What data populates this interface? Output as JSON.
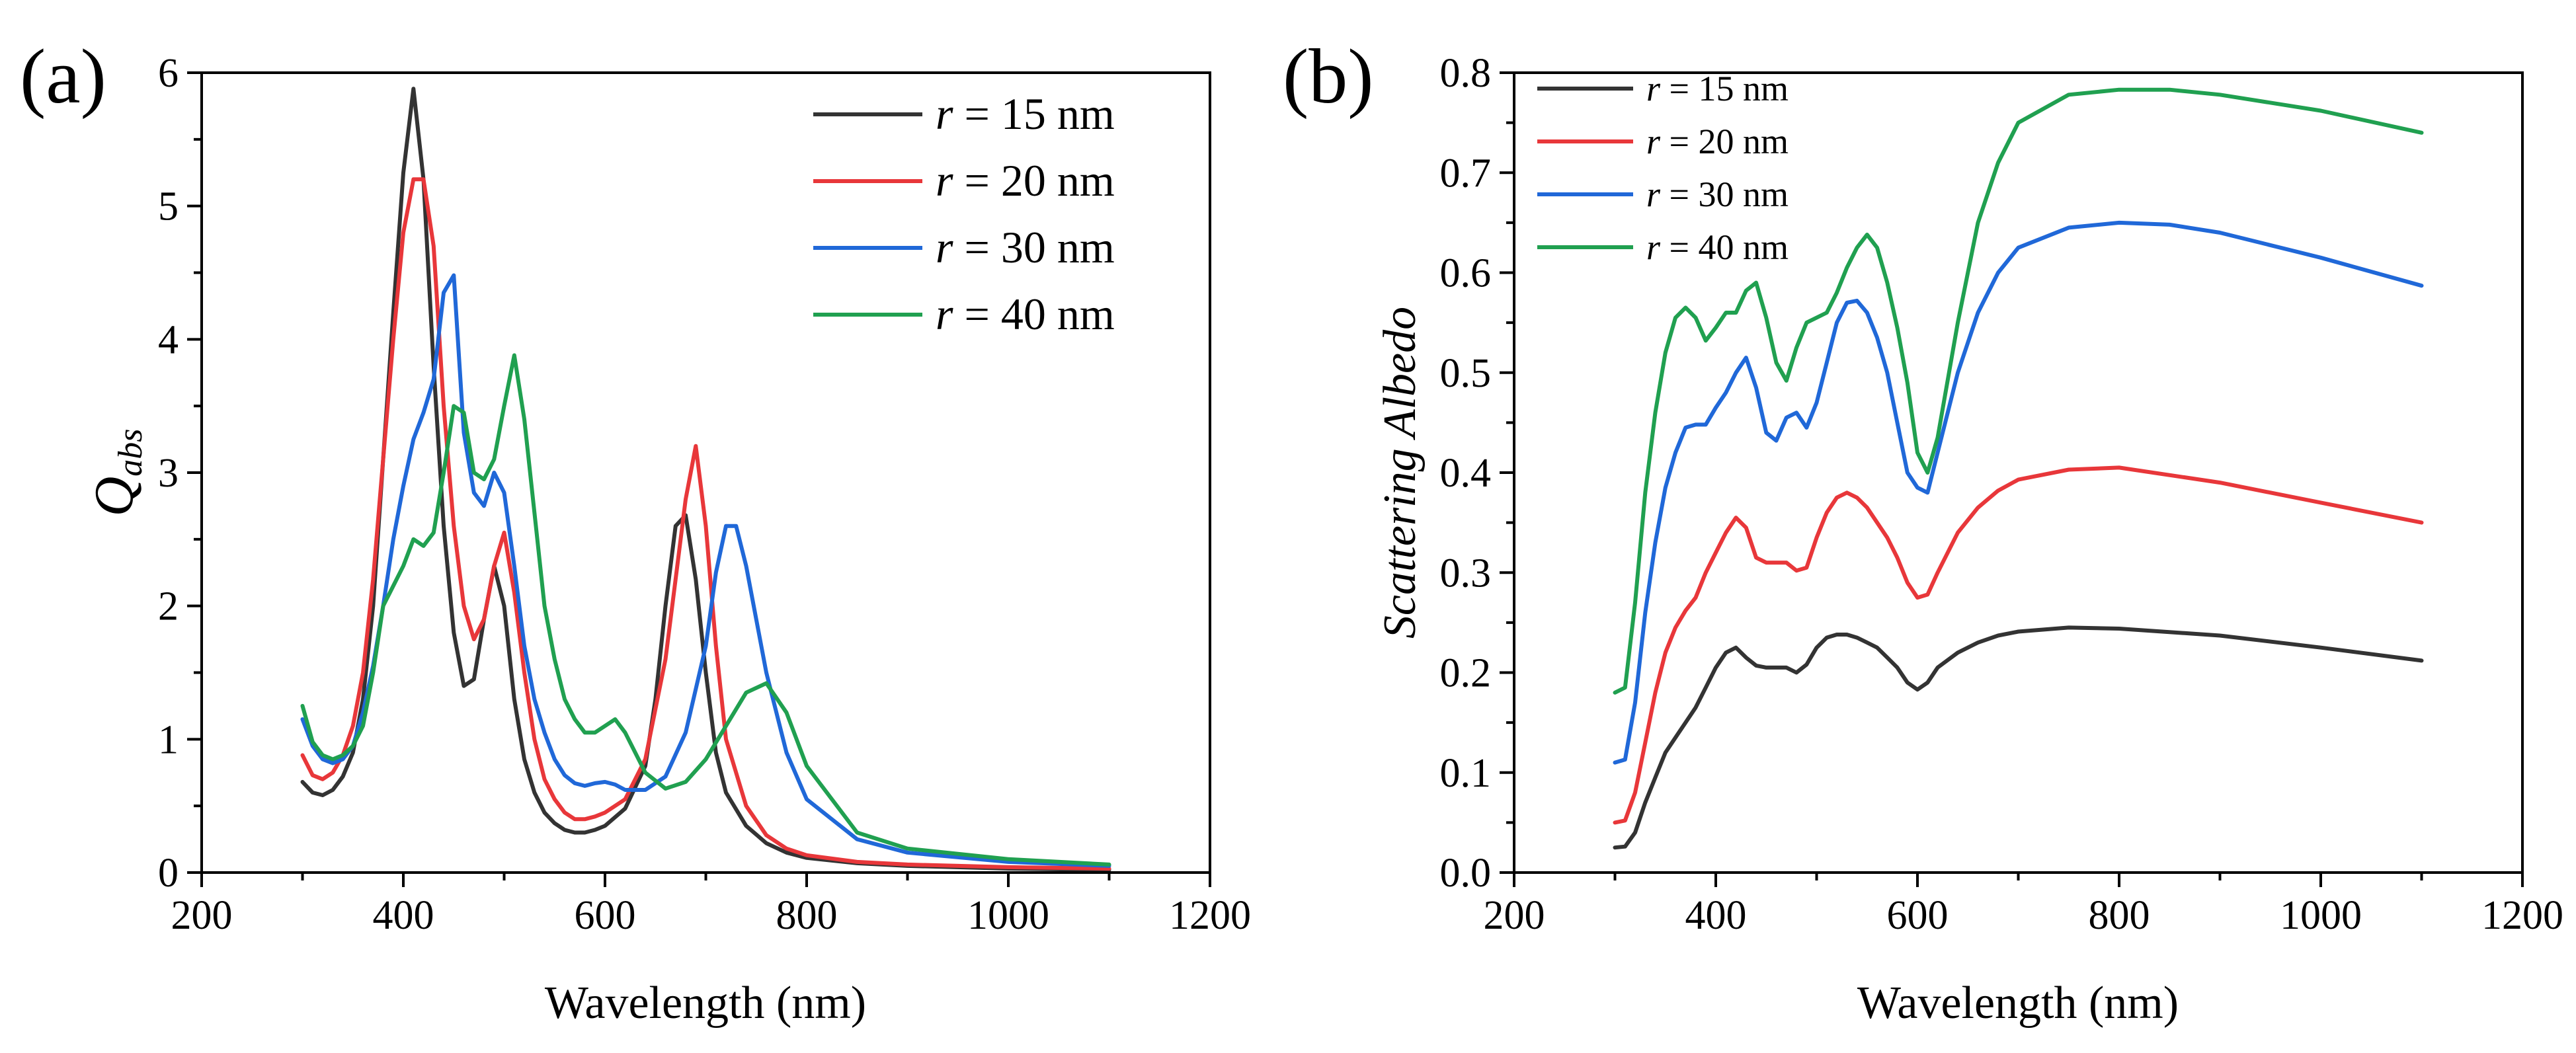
{
  "panels": {
    "a": {
      "label": "(a)"
    },
    "b": {
      "label": "(b)"
    }
  },
  "chart_data": [
    {
      "type": "line",
      "panel_label": "(a)",
      "title": "",
      "xlabel": "Wavelength (nm)",
      "ylabel": "Q",
      "ylabel_sub": "abs",
      "xlim": [
        200,
        1200
      ],
      "ylim": [
        0,
        6
      ],
      "xticks": [
        "200",
        "400",
        "600",
        "800",
        "1000",
        "1200"
      ],
      "yticks": [
        "0",
        "1",
        "2",
        "3",
        "4",
        "5",
        "6"
      ],
      "legend": {
        "location": "top-right"
      },
      "series": [
        {
          "name_var": "r",
          "name_rest": " = 15 nm",
          "color": "#333333",
          "x": [
            300,
            310,
            320,
            330,
            340,
            350,
            360,
            370,
            380,
            390,
            400,
            410,
            420,
            430,
            440,
            450,
            460,
            470,
            480,
            490,
            500,
            510,
            520,
            530,
            540,
            550,
            560,
            570,
            580,
            590,
            600,
            620,
            640,
            650,
            660,
            670,
            680,
            690,
            700,
            710,
            720,
            740,
            760,
            780,
            800,
            850,
            900,
            1000,
            1100
          ],
          "y": [
            0.68,
            0.6,
            0.58,
            0.62,
            0.72,
            0.9,
            1.3,
            2.0,
            3.1,
            4.2,
            5.25,
            5.88,
            5.2,
            3.8,
            2.6,
            1.8,
            1.4,
            1.45,
            1.9,
            2.3,
            2.0,
            1.3,
            0.85,
            0.6,
            0.45,
            0.37,
            0.32,
            0.3,
            0.3,
            0.32,
            0.35,
            0.48,
            0.8,
            1.3,
            2.0,
            2.6,
            2.68,
            2.2,
            1.5,
            0.9,
            0.6,
            0.35,
            0.22,
            0.15,
            0.11,
            0.07,
            0.05,
            0.03,
            0.02
          ]
        },
        {
          "name_var": "r",
          "name_rest": " = 20 nm",
          "color": "#e8373a",
          "x": [
            300,
            310,
            320,
            330,
            340,
            350,
            360,
            370,
            380,
            390,
            400,
            410,
            420,
            430,
            440,
            450,
            460,
            470,
            480,
            490,
            500,
            510,
            520,
            530,
            540,
            550,
            560,
            570,
            580,
            590,
            600,
            620,
            640,
            660,
            670,
            680,
            690,
            700,
            710,
            720,
            740,
            760,
            780,
            800,
            850,
            900,
            1000,
            1100
          ],
          "y": [
            0.88,
            0.73,
            0.7,
            0.75,
            0.88,
            1.1,
            1.5,
            2.2,
            3.1,
            4.0,
            4.8,
            5.2,
            5.2,
            4.7,
            3.5,
            2.6,
            2.0,
            1.75,
            1.9,
            2.3,
            2.55,
            2.1,
            1.5,
            1.0,
            0.7,
            0.55,
            0.45,
            0.4,
            0.4,
            0.42,
            0.45,
            0.55,
            0.85,
            1.6,
            2.2,
            2.8,
            3.2,
            2.6,
            1.7,
            1.0,
            0.5,
            0.28,
            0.18,
            0.13,
            0.08,
            0.06,
            0.04,
            0.03
          ]
        },
        {
          "name_var": "r",
          "name_rest": " = 30 nm",
          "color": "#2068d8",
          "x": [
            300,
            310,
            320,
            330,
            340,
            350,
            360,
            370,
            380,
            390,
            400,
            410,
            420,
            430,
            440,
            450,
            460,
            470,
            480,
            490,
            500,
            510,
            520,
            530,
            540,
            550,
            560,
            570,
            580,
            590,
            600,
            610,
            620,
            640,
            660,
            680,
            700,
            710,
            720,
            730,
            740,
            760,
            780,
            800,
            850,
            900,
            1000,
            1100
          ],
          "y": [
            1.15,
            0.95,
            0.85,
            0.82,
            0.85,
            0.95,
            1.2,
            1.55,
            2.0,
            2.5,
            2.9,
            3.25,
            3.45,
            3.7,
            4.35,
            4.48,
            3.3,
            2.85,
            2.75,
            3.0,
            2.85,
            2.3,
            1.7,
            1.3,
            1.05,
            0.85,
            0.73,
            0.67,
            0.65,
            0.67,
            0.68,
            0.66,
            0.62,
            0.62,
            0.72,
            1.05,
            1.7,
            2.25,
            2.6,
            2.6,
            2.3,
            1.5,
            0.9,
            0.55,
            0.25,
            0.15,
            0.08,
            0.05
          ]
        },
        {
          "name_var": "r",
          "name_rest": " = 40 nm",
          "color": "#20a050",
          "x": [
            300,
            310,
            320,
            330,
            340,
            350,
            360,
            370,
            380,
            390,
            400,
            410,
            420,
            430,
            440,
            450,
            460,
            470,
            480,
            490,
            500,
            510,
            520,
            530,
            540,
            550,
            560,
            570,
            580,
            590,
            600,
            610,
            620,
            640,
            660,
            680,
            700,
            720,
            740,
            760,
            780,
            800,
            850,
            900,
            1000,
            1100
          ],
          "y": [
            1.25,
            0.98,
            0.88,
            0.85,
            0.88,
            0.95,
            1.1,
            1.5,
            2.0,
            2.15,
            2.3,
            2.5,
            2.45,
            2.55,
            3.0,
            3.5,
            3.45,
            3.0,
            2.95,
            3.1,
            3.5,
            3.88,
            3.4,
            2.7,
            2.0,
            1.6,
            1.3,
            1.15,
            1.05,
            1.05,
            1.1,
            1.15,
            1.05,
            0.75,
            0.63,
            0.68,
            0.85,
            1.1,
            1.35,
            1.42,
            1.2,
            0.8,
            0.3,
            0.18,
            0.1,
            0.06
          ]
        }
      ]
    },
    {
      "type": "line",
      "panel_label": "(b)",
      "title": "",
      "xlabel": "Wavelength (nm)",
      "ylabel": "Scattering Albedo",
      "xlim": [
        200,
        1200
      ],
      "ylim": [
        0,
        0.8
      ],
      "xticks": [
        "200",
        "400",
        "600",
        "800",
        "1000",
        "1200"
      ],
      "yticks": [
        "0.0",
        "0.1",
        "0.2",
        "0.3",
        "0.4",
        "0.5",
        "0.6",
        "0.7",
        "0.8"
      ],
      "legend": {
        "location": "top-left"
      },
      "series": [
        {
          "name_var": "r",
          "name_rest": " = 15 nm",
          "color": "#333333",
          "x": [
            300,
            310,
            320,
            330,
            340,
            350,
            360,
            370,
            380,
            390,
            400,
            410,
            420,
            430,
            440,
            450,
            460,
            470,
            480,
            490,
            500,
            510,
            520,
            530,
            540,
            550,
            560,
            570,
            580,
            590,
            600,
            610,
            620,
            640,
            660,
            680,
            700,
            750,
            800,
            900,
            1000,
            1100
          ],
          "y": [
            0.025,
            0.026,
            0.04,
            0.07,
            0.095,
            0.12,
            0.135,
            0.15,
            0.165,
            0.185,
            0.205,
            0.22,
            0.225,
            0.215,
            0.207,
            0.205,
            0.205,
            0.205,
            0.2,
            0.208,
            0.225,
            0.235,
            0.238,
            0.238,
            0.235,
            0.23,
            0.225,
            0.215,
            0.205,
            0.19,
            0.183,
            0.19,
            0.205,
            0.22,
            0.23,
            0.237,
            0.241,
            0.245,
            0.244,
            0.237,
            0.225,
            0.212
          ]
        },
        {
          "name_var": "r",
          "name_rest": " = 20 nm",
          "color": "#e8373a",
          "x": [
            300,
            310,
            320,
            330,
            340,
            350,
            360,
            370,
            380,
            390,
            400,
            410,
            420,
            430,
            440,
            450,
            460,
            470,
            480,
            490,
            500,
            510,
            520,
            530,
            540,
            550,
            560,
            570,
            580,
            590,
            600,
            610,
            620,
            640,
            660,
            680,
            700,
            750,
            800,
            900,
            1000,
            1100
          ],
          "y": [
            0.05,
            0.052,
            0.08,
            0.13,
            0.18,
            0.22,
            0.245,
            0.262,
            0.275,
            0.3,
            0.32,
            0.34,
            0.355,
            0.345,
            0.315,
            0.31,
            0.31,
            0.31,
            0.302,
            0.305,
            0.335,
            0.36,
            0.375,
            0.38,
            0.375,
            0.365,
            0.35,
            0.335,
            0.315,
            0.29,
            0.275,
            0.278,
            0.3,
            0.34,
            0.365,
            0.382,
            0.393,
            0.403,
            0.405,
            0.39,
            0.37,
            0.35
          ]
        },
        {
          "name_var": "r",
          "name_rest": " = 30 nm",
          "color": "#2068d8",
          "x": [
            300,
            310,
            320,
            330,
            340,
            350,
            360,
            370,
            380,
            390,
            400,
            410,
            420,
            430,
            440,
            450,
            460,
            470,
            480,
            490,
            500,
            510,
            520,
            530,
            540,
            550,
            560,
            570,
            580,
            590,
            600,
            610,
            620,
            640,
            660,
            680,
            700,
            750,
            800,
            850,
            900,
            1000,
            1100
          ],
          "y": [
            0.11,
            0.113,
            0.17,
            0.26,
            0.33,
            0.385,
            0.42,
            0.445,
            0.448,
            0.448,
            0.465,
            0.48,
            0.5,
            0.515,
            0.485,
            0.44,
            0.432,
            0.455,
            0.46,
            0.445,
            0.47,
            0.51,
            0.55,
            0.57,
            0.572,
            0.56,
            0.535,
            0.5,
            0.45,
            0.4,
            0.385,
            0.38,
            0.42,
            0.5,
            0.56,
            0.6,
            0.625,
            0.645,
            0.65,
            0.648,
            0.64,
            0.615,
            0.587
          ]
        },
        {
          "name_var": "r",
          "name_rest": " = 40 nm",
          "color": "#20a050",
          "x": [
            300,
            310,
            320,
            330,
            340,
            350,
            360,
            370,
            380,
            390,
            400,
            410,
            420,
            430,
            440,
            450,
            460,
            470,
            480,
            490,
            500,
            510,
            520,
            530,
            540,
            550,
            560,
            570,
            580,
            590,
            600,
            610,
            620,
            640,
            660,
            680,
            700,
            750,
            800,
            850,
            900,
            1000,
            1100
          ],
          "y": [
            0.18,
            0.185,
            0.27,
            0.38,
            0.46,
            0.52,
            0.555,
            0.565,
            0.555,
            0.532,
            0.545,
            0.56,
            0.56,
            0.582,
            0.59,
            0.555,
            0.51,
            0.492,
            0.525,
            0.55,
            0.555,
            0.56,
            0.58,
            0.605,
            0.625,
            0.638,
            0.625,
            0.59,
            0.545,
            0.49,
            0.42,
            0.4,
            0.435,
            0.55,
            0.65,
            0.71,
            0.75,
            0.778,
            0.783,
            0.783,
            0.778,
            0.762,
            0.74
          ]
        }
      ]
    }
  ]
}
